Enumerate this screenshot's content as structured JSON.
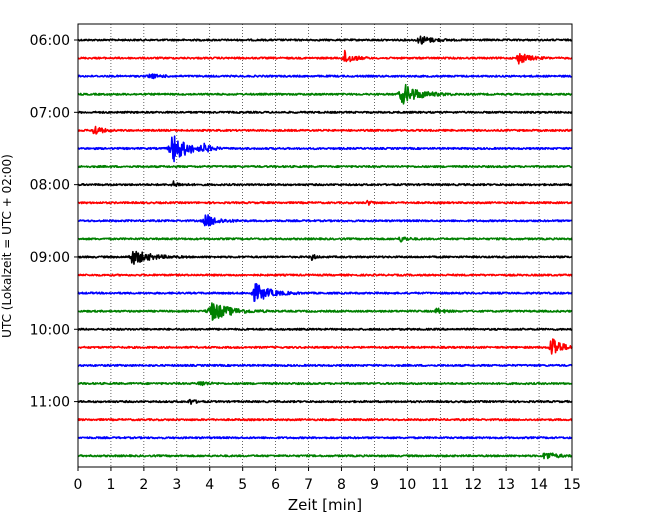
{
  "chart_data": {
    "type": "line",
    "title": "",
    "xlabel": "Zeit  [min]",
    "ylabel": "UTC (Lokalzeit = UTC + 02:00)",
    "xlim": [
      0,
      15
    ],
    "x_ticks": [
      0,
      1,
      2,
      3,
      4,
      5,
      6,
      7,
      8,
      9,
      10,
      11,
      12,
      13,
      14,
      15
    ],
    "y_tick_labels": [
      "06:00",
      "07:00",
      "08:00",
      "09:00",
      "10:00",
      "11:00"
    ],
    "grid": "vertical dotted at each minute",
    "colors": [
      "#000000",
      "#ff0000",
      "#0000ff",
      "#008000"
    ],
    "start_time": "06:00",
    "trace_minutes": 15,
    "traces": [
      {
        "start": "06:00",
        "color": "#000000",
        "events": [
          [
            10.4,
            0.6,
            0.7
          ]
        ]
      },
      {
        "start": "06:15",
        "color": "#ff0000",
        "events": [
          [
            8.1,
            1.0,
            0.5
          ],
          [
            13.4,
            0.8,
            0.6
          ]
        ]
      },
      {
        "start": "06:30",
        "color": "#0000ff",
        "events": [
          [
            2.2,
            0.3,
            0.6
          ]
        ]
      },
      {
        "start": "06:45",
        "color": "#008000",
        "events": [
          [
            9.9,
            1.4,
            1.0
          ]
        ]
      },
      {
        "start": "07:00",
        "color": "#000000",
        "events": []
      },
      {
        "start": "07:15",
        "color": "#ff0000",
        "events": [
          [
            0.5,
            0.8,
            0.4
          ]
        ]
      },
      {
        "start": "07:30",
        "color": "#0000ff",
        "events": [
          [
            2.9,
            2.0,
            0.9
          ],
          [
            3.8,
            0.5,
            0.4
          ]
        ]
      },
      {
        "start": "07:45",
        "color": "#008000",
        "events": []
      },
      {
        "start": "08:00",
        "color": "#000000",
        "events": [
          [
            2.9,
            0.4,
            0.4
          ]
        ]
      },
      {
        "start": "08:15",
        "color": "#ff0000",
        "events": [
          [
            8.8,
            0.3,
            0.3
          ]
        ]
      },
      {
        "start": "08:30",
        "color": "#0000ff",
        "events": [
          [
            3.9,
            0.9,
            0.7
          ]
        ]
      },
      {
        "start": "08:45",
        "color": "#008000",
        "events": [
          [
            9.8,
            0.4,
            0.4
          ]
        ]
      },
      {
        "start": "09:00",
        "color": "#000000",
        "events": [
          [
            1.7,
            1.0,
            1.0
          ],
          [
            7.1,
            0.5,
            0.2
          ]
        ]
      },
      {
        "start": "09:15",
        "color": "#ff0000",
        "events": []
      },
      {
        "start": "09:30",
        "color": "#0000ff",
        "events": [
          [
            5.4,
            1.3,
            0.9
          ]
        ]
      },
      {
        "start": "09:45",
        "color": "#008000",
        "events": [
          [
            4.1,
            1.3,
            1.1
          ],
          [
            10.9,
            0.4,
            0.4
          ]
        ]
      },
      {
        "start": "10:00",
        "color": "#000000",
        "events": []
      },
      {
        "start": "10:15",
        "color": "#ff0000",
        "events": [
          [
            14.4,
            1.8,
            0.5
          ]
        ]
      },
      {
        "start": "10:30",
        "color": "#0000ff",
        "events": []
      },
      {
        "start": "10:45",
        "color": "#008000",
        "events": [
          [
            3.7,
            0.4,
            0.4
          ]
        ]
      },
      {
        "start": "11:00",
        "color": "#000000",
        "events": [
          [
            3.4,
            0.4,
            0.3
          ]
        ]
      },
      {
        "start": "11:15",
        "color": "#ff0000",
        "events": []
      },
      {
        "start": "11:30",
        "color": "#0000ff",
        "events": []
      },
      {
        "start": "11:45",
        "color": "#008000",
        "events": [
          [
            14.2,
            0.6,
            0.6
          ]
        ]
      }
    ]
  }
}
